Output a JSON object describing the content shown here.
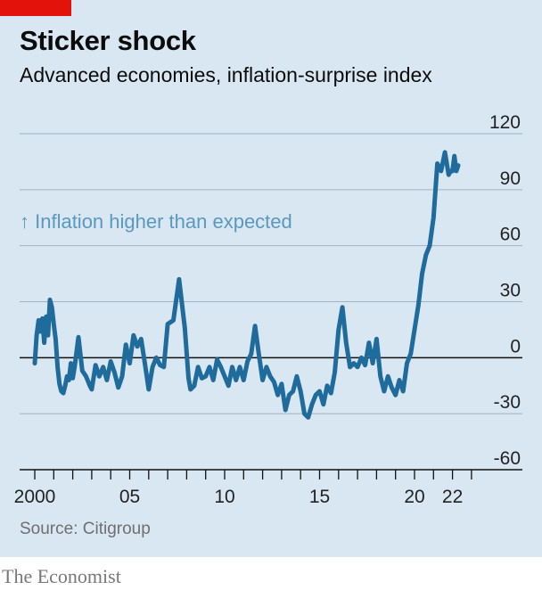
{
  "header": {
    "title": "Sticker shock",
    "subtitle": "Advanced economies, inflation-surprise index"
  },
  "source": "Source: Citigroup",
  "brand": "The Economist",
  "colors": {
    "line": "#1f6b9c",
    "annotation": "#5b98bf",
    "accent": "#e3120b",
    "background": "#d9e7f2"
  },
  "chart_data": {
    "type": "line",
    "title": "Sticker shock",
    "subtitle": "Advanced economies, inflation-surprise index",
    "ylim": [
      -60,
      120
    ],
    "xlim": [
      1999.8,
      2023.3
    ],
    "y_ticks": [
      -60,
      -30,
      0,
      30,
      60,
      90,
      120
    ],
    "x_ticks": [
      {
        "label": "2000",
        "value": 2000
      },
      {
        "label": "05",
        "value": 2005
      },
      {
        "label": "10",
        "value": 2010
      },
      {
        "label": "15",
        "value": 2015
      },
      {
        "label": "20",
        "value": 2020
      },
      {
        "label": "22",
        "value": 2022
      }
    ],
    "grid": "horizontal",
    "zero_line": true,
    "annotation": "↑ Inflation higher than expected",
    "series": [
      {
        "x": [
          2000.0,
          2000.1,
          2000.2,
          2000.3,
          2000.4,
          2000.5,
          2000.6,
          2000.7,
          2000.8,
          2000.9,
          2001.0,
          2001.1,
          2001.2,
          2001.3,
          2001.4,
          2001.5,
          2001.6,
          2001.7,
          2001.8,
          2001.9,
          2002.0,
          2002.1,
          2002.3,
          2002.5,
          2002.7,
          2002.9,
          2003.0,
          2003.2,
          2003.4,
          2003.6,
          2003.8,
          2004.0,
          2004.2,
          2004.4,
          2004.6,
          2004.8,
          2005.0,
          2005.2,
          2005.4,
          2005.6,
          2005.8,
          2006.0,
          2006.2,
          2006.4,
          2006.6,
          2006.8,
          2007.0,
          2007.3,
          2007.6,
          2007.9,
          2008.1,
          2008.2,
          2008.4,
          2008.6,
          2008.8,
          2009.0,
          2009.2,
          2009.4,
          2009.6,
          2009.8,
          2010.0,
          2010.2,
          2010.4,
          2010.6,
          2010.8,
          2011.0,
          2011.2,
          2011.4,
          2011.6,
          2011.8,
          2012.0,
          2012.2,
          2012.4,
          2012.6,
          2012.8,
          2013.0,
          2013.2,
          2013.4,
          2013.6,
          2013.8,
          2014.0,
          2014.2,
          2014.4,
          2014.6,
          2014.8,
          2015.0,
          2015.2,
          2015.4,
          2015.6,
          2015.8,
          2016.0,
          2016.2,
          2016.4,
          2016.6,
          2016.8,
          2017.0,
          2017.2,
          2017.4,
          2017.6,
          2017.8,
          2018.0,
          2018.2,
          2018.4,
          2018.6,
          2018.8,
          2019.0,
          2019.2,
          2019.4,
          2019.6,
          2019.8,
          2020.0,
          2020.2,
          2020.4,
          2020.6,
          2020.8,
          2021.0,
          2021.2,
          2021.4,
          2021.6,
          2021.8,
          2021.9,
          2022.0,
          2022.1,
          2022.2,
          2022.3
        ],
        "y": [
          -3,
          12,
          20,
          14,
          21,
          8,
          22,
          12,
          31,
          27,
          18,
          10,
          -5,
          -14,
          -18,
          -19,
          -15,
          -10,
          -12,
          -3,
          -11,
          -5,
          11,
          -7,
          -10,
          -15,
          -17,
          -4,
          -10,
          -5,
          -12,
          -2,
          -8,
          -16,
          -10,
          7,
          -3,
          12,
          6,
          10,
          -3,
          -17,
          -5,
          0,
          -4,
          -5,
          18,
          20,
          42,
          16,
          -11,
          -17,
          -15,
          -5,
          -11,
          -10,
          -5,
          -12,
          -1,
          -5,
          -10,
          -15,
          -5,
          -12,
          -5,
          -12,
          -2,
          2,
          17,
          2,
          -12,
          -5,
          -10,
          -13,
          -20,
          -14,
          -28,
          -20,
          -18,
          -10,
          -18,
          -30,
          -32,
          -25,
          -20,
          -18,
          -25,
          -15,
          -19,
          -8,
          15,
          27,
          8,
          -5,
          -3,
          -5,
          0,
          -4,
          8,
          -3,
          10,
          -10,
          -18,
          -10,
          -16,
          -20,
          -12,
          -18,
          -3,
          2,
          15,
          28,
          45,
          55,
          60,
          75,
          104,
          100,
          110,
          98,
          100,
          100,
          108,
          100,
          103
        ]
      }
    ]
  }
}
